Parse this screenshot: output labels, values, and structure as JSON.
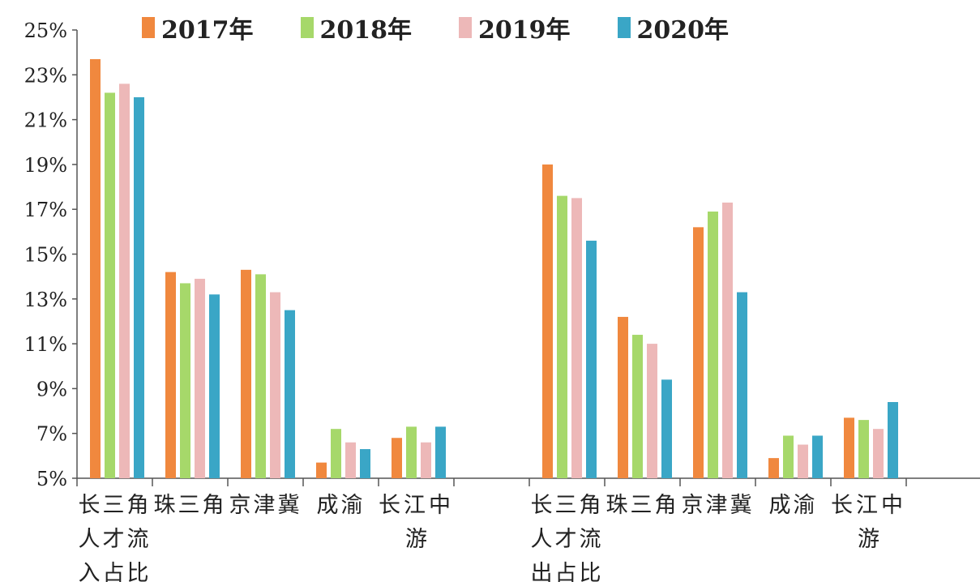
{
  "chart_data": {
    "type": "bar",
    "title": "",
    "xlabel": "",
    "ylabel": "",
    "ylim": [
      5,
      25
    ],
    "y_ticks": [
      "5%",
      "7%",
      "9%",
      "11%",
      "13%",
      "15%",
      "17%",
      "19%",
      "21%",
      "23%",
      "25%"
    ],
    "grid": false,
    "legend_position": "top",
    "groups": [
      {
        "label_lines": [
          "长三角",
          "人才流",
          "入占比"
        ],
        "categories": [
          "长三角",
          "珠三角",
          "京津冀",
          "成渝",
          "长江中游"
        ]
      },
      {
        "label_lines": [
          "长三角",
          "人才流",
          "出占比"
        ],
        "categories": [
          "长三角",
          "珠三角",
          "京津冀",
          "成渝",
          "长江中游"
        ]
      }
    ],
    "series": [
      {
        "name": "2017年",
        "color": "#F0883E",
        "values": [
          23.7,
          14.2,
          14.3,
          5.7,
          6.8,
          19.0,
          12.2,
          16.2,
          5.9,
          7.7
        ]
      },
      {
        "name": "2018年",
        "color": "#A6D86A",
        "values": [
          22.2,
          13.7,
          14.1,
          7.2,
          7.3,
          17.6,
          11.4,
          16.9,
          6.9,
          7.6
        ]
      },
      {
        "name": "2019年",
        "color": "#EDB8B8",
        "values": [
          22.6,
          13.9,
          13.3,
          6.6,
          6.6,
          17.5,
          11.0,
          17.3,
          6.5,
          7.2
        ]
      },
      {
        "name": "2020年",
        "color": "#3AA6C6",
        "values": [
          22.0,
          13.2,
          12.5,
          6.3,
          7.3,
          15.6,
          9.4,
          13.3,
          6.9,
          8.4
        ]
      }
    ]
  }
}
